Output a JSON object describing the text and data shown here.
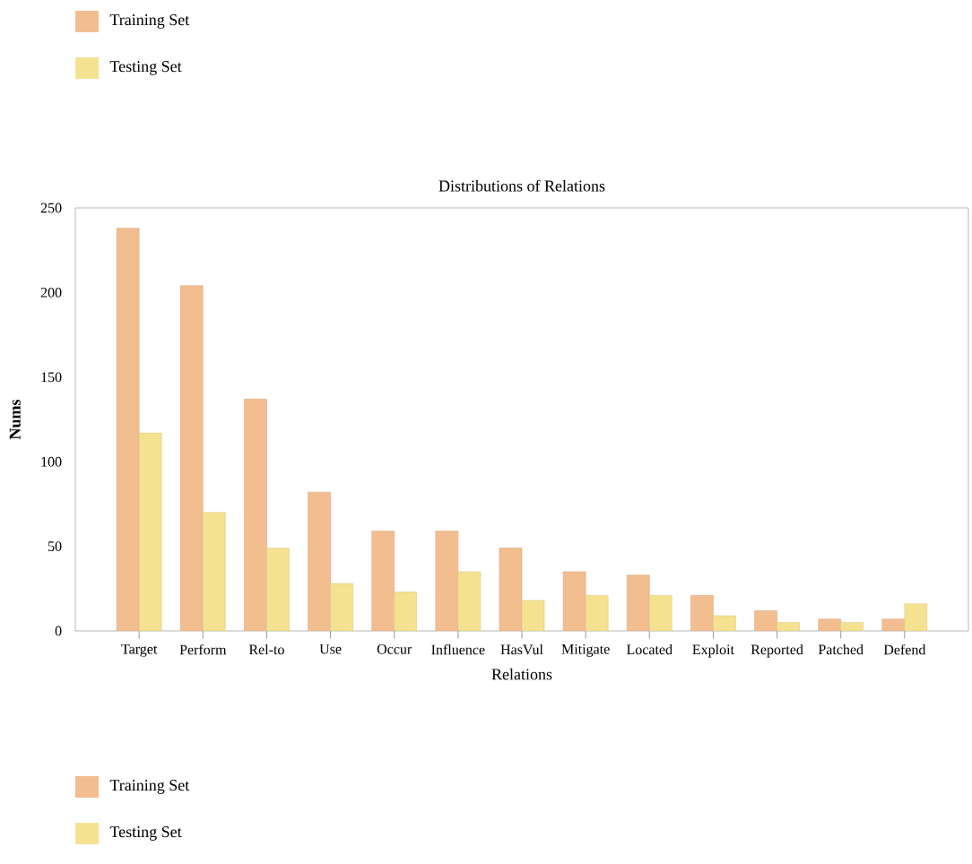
{
  "chart_data": {
    "type": "bar",
    "title": "Distributions of Relations",
    "xlabel": "Relations",
    "ylabel": "Nums",
    "categories": [
      "Target",
      "Perform",
      "Rel-to",
      "Use",
      "Occur",
      "Influence",
      "HasVul",
      "Mitigate",
      "Located",
      "Exploit",
      "Reported",
      "Patched",
      "Defend"
    ],
    "series": [
      {
        "name": "Training Set",
        "color": "#f2be90",
        "values": [
          238,
          204,
          137,
          82,
          59,
          59,
          49,
          35,
          33,
          21,
          12,
          7,
          7
        ]
      },
      {
        "name": "Testing Set",
        "color": "#f5e291",
        "values": [
          117,
          70,
          49,
          28,
          23,
          35,
          18,
          21,
          21,
          9,
          5,
          5,
          16
        ]
      }
    ],
    "ylim": [
      0,
      250
    ],
    "yticks": [
      0,
      50,
      100,
      150,
      200,
      250
    ],
    "legend": [
      "top left",
      "bottom left"
    ]
  }
}
